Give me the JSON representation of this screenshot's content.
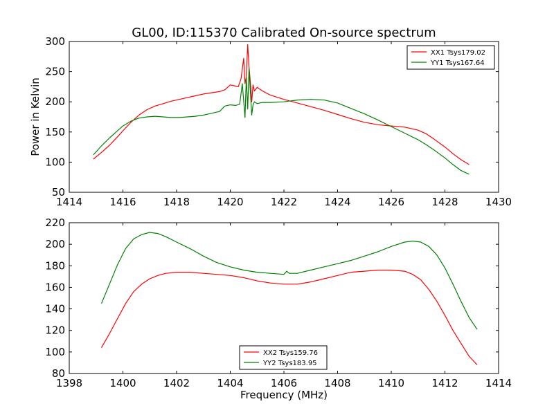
{
  "figure": {
    "title": "GL00, ID:115370 Calibrated On-source spectrum",
    "ylabel": "Power in Kelvin",
    "xlabel": "Frequency (MHz)"
  },
  "chart_data": [
    {
      "type": "line",
      "title": "GL00, ID:115370 Calibrated On-source spectrum",
      "xlabel": "",
      "ylabel": "Power in Kelvin",
      "xlim": [
        1414,
        1430
      ],
      "ylim": [
        50,
        300
      ],
      "xticks": [
        1414,
        1416,
        1418,
        1420,
        1422,
        1424,
        1426,
        1428,
        1430
      ],
      "yticks": [
        50,
        100,
        150,
        200,
        250,
        300
      ],
      "grid": false,
      "legend": "top-right",
      "series": [
        {
          "name": "XX1 Tsys179.02",
          "color": "#ff0000",
          "x": [
            1414.9,
            1415.2,
            1415.5,
            1415.8,
            1416.0,
            1416.3,
            1416.6,
            1416.9,
            1417.2,
            1417.5,
            1417.8,
            1418.1,
            1418.4,
            1418.7,
            1419.0,
            1419.3,
            1419.6,
            1419.8,
            1420.0,
            1420.2,
            1420.3,
            1420.4,
            1420.5,
            1420.55,
            1420.6,
            1420.65,
            1420.7,
            1420.75,
            1420.8,
            1420.85,
            1420.9,
            1421.0,
            1421.2,
            1421.5,
            1422.0,
            1422.5,
            1423.0,
            1423.5,
            1424.0,
            1424.5,
            1425.0,
            1425.5,
            1426.0,
            1426.5,
            1427.0,
            1427.3,
            1427.6,
            1428.0,
            1428.3,
            1428.6,
            1428.9
          ],
          "y": [
            105,
            116,
            128,
            142,
            152,
            166,
            178,
            187,
            193,
            197,
            201,
            204,
            207,
            210,
            213,
            215,
            217,
            220,
            228,
            226,
            225,
            238,
            272,
            230,
            243,
            295,
            258,
            232,
            200,
            228,
            218,
            224,
            218,
            211,
            204,
            198,
            192,
            186,
            179,
            172,
            166,
            162,
            160,
            158,
            153,
            147,
            138,
            125,
            114,
            104,
            96
          ]
        },
        {
          "name": "YY1 Tsys167.64",
          "color": "#008000",
          "x": [
            1414.9,
            1415.2,
            1415.5,
            1415.8,
            1416.0,
            1416.3,
            1416.6,
            1416.9,
            1417.2,
            1417.5,
            1417.8,
            1418.1,
            1418.4,
            1418.7,
            1419.0,
            1419.3,
            1419.6,
            1419.8,
            1420.0,
            1420.2,
            1420.35,
            1420.45,
            1420.55,
            1420.6,
            1420.65,
            1420.7,
            1420.75,
            1420.8,
            1420.85,
            1420.9,
            1421.0,
            1421.2,
            1421.5,
            1422.0,
            1422.5,
            1423.0,
            1423.5,
            1424.0,
            1424.5,
            1425.0,
            1425.5,
            1426.0,
            1426.5,
            1427.0,
            1427.3,
            1427.6,
            1428.0,
            1428.3,
            1428.6,
            1428.9
          ],
          "y": [
            112,
            127,
            140,
            152,
            160,
            168,
            173,
            175,
            176,
            175,
            174,
            174,
            175,
            176,
            178,
            181,
            184,
            193,
            195,
            194,
            196,
            230,
            174,
            240,
            188,
            255,
            215,
            178,
            195,
            200,
            197,
            199,
            199,
            200,
            203,
            204,
            203,
            198,
            189,
            180,
            170,
            159,
            148,
            137,
            129,
            120,
            107,
            96,
            86,
            80
          ]
        }
      ]
    },
    {
      "type": "line",
      "title": "",
      "xlabel": "Frequency (MHz)",
      "ylabel": "",
      "xlim": [
        1398,
        1414
      ],
      "ylim": [
        80,
        220
      ],
      "xticks": [
        1398,
        1400,
        1402,
        1404,
        1406,
        1408,
        1410,
        1412,
        1414
      ],
      "yticks": [
        80,
        100,
        120,
        140,
        160,
        180,
        200,
        220
      ],
      "grid": false,
      "legend": "bottom-center",
      "series": [
        {
          "name": "XX2 Tsys159.76",
          "color": "#ff0000",
          "x": [
            1399.2,
            1399.5,
            1399.8,
            1400.1,
            1400.4,
            1400.7,
            1401.0,
            1401.3,
            1401.6,
            1402.0,
            1402.5,
            1403.0,
            1403.5,
            1404.0,
            1404.5,
            1405.0,
            1405.5,
            1406.0,
            1406.5,
            1407.0,
            1407.5,
            1408.0,
            1408.5,
            1409.0,
            1409.5,
            1410.0,
            1410.5,
            1410.8,
            1411.1,
            1411.4,
            1411.7,
            1412.0,
            1412.3,
            1412.6,
            1412.9,
            1413.2
          ],
          "y": [
            104,
            117,
            131,
            145,
            156,
            163,
            168,
            171,
            173,
            174,
            174,
            173,
            172,
            171,
            169,
            166,
            164,
            163,
            163,
            165,
            168,
            171,
            174,
            175,
            176,
            176,
            175,
            172,
            167,
            158,
            147,
            134,
            120,
            108,
            96,
            88
          ]
        },
        {
          "name": "YY2 Tsys183.95",
          "color": "#008000",
          "x": [
            1399.2,
            1399.5,
            1399.8,
            1400.1,
            1400.4,
            1400.7,
            1401.0,
            1401.3,
            1401.6,
            1402.0,
            1402.5,
            1403.0,
            1403.5,
            1404.0,
            1404.5,
            1405.0,
            1405.5,
            1406.0,
            1406.1,
            1406.2,
            1406.5,
            1407.0,
            1407.5,
            1408.0,
            1408.5,
            1409.0,
            1409.5,
            1410.0,
            1410.5,
            1410.8,
            1411.1,
            1411.4,
            1411.7,
            1412.0,
            1412.3,
            1412.6,
            1412.9,
            1413.2
          ],
          "y": [
            145,
            163,
            181,
            196,
            205,
            209,
            211,
            210,
            207,
            202,
            196,
            189,
            183,
            179,
            176,
            174,
            173,
            172,
            175,
            173,
            173,
            176,
            179,
            182,
            185,
            189,
            193,
            198,
            202,
            203,
            202,
            198,
            190,
            178,
            163,
            147,
            132,
            121
          ]
        }
      ]
    }
  ]
}
